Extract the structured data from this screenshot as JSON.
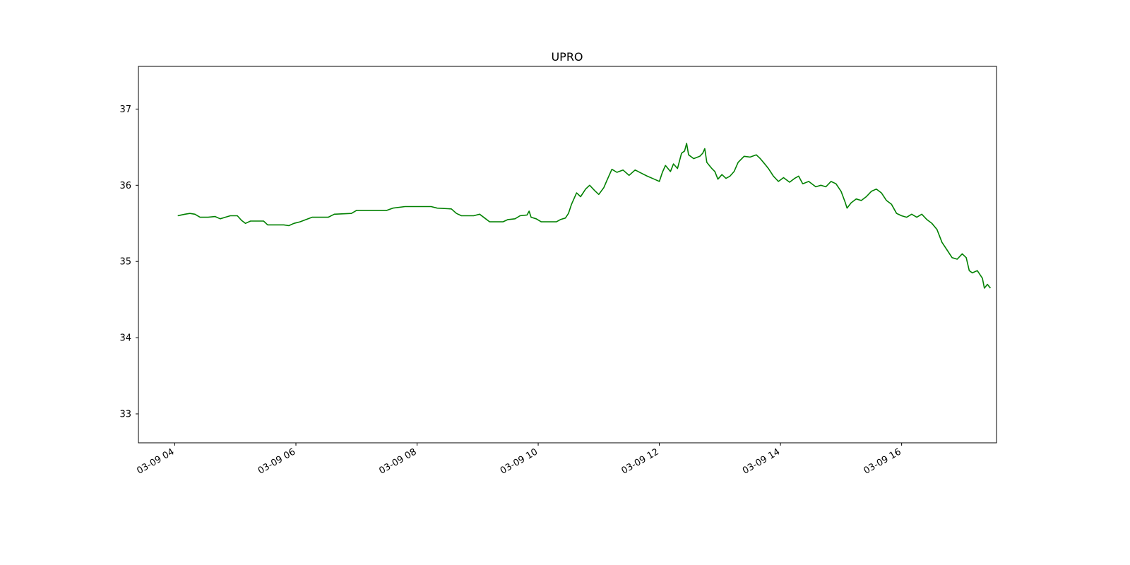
{
  "chart_data": {
    "type": "line",
    "title": "UPRO",
    "xlabel": "",
    "ylabel": "",
    "x_ticks": [
      "03-09 04",
      "03-09 06",
      "03-09 08",
      "03-09 10",
      "03-09 12",
      "03-09 14",
      "03-09 16"
    ],
    "y_ticks": [
      "33",
      "34",
      "35",
      "36",
      "37"
    ],
    "xlim": [
      "03-09 03:24",
      "03-09 17:34"
    ],
    "ylim": [
      32.62,
      37.56
    ],
    "grid": false,
    "line_color": "#008000",
    "series": [
      {
        "points": [
          [
            "03-09 04:03",
            35.6
          ],
          [
            "03-09 04:10",
            35.62
          ],
          [
            "03-09 04:15",
            35.63
          ],
          [
            "03-09 04:20",
            35.62
          ],
          [
            "03-09 04:25",
            35.58
          ],
          [
            "03-09 04:33",
            35.58
          ],
          [
            "03-09 04:40",
            35.59
          ],
          [
            "03-09 04:45",
            35.56
          ],
          [
            "03-09 04:50",
            35.58
          ],
          [
            "03-09 04:55",
            35.6
          ],
          [
            "03-09 05:02",
            35.6
          ],
          [
            "03-09 05:06",
            35.54
          ],
          [
            "03-09 05:10",
            35.5
          ],
          [
            "03-09 05:15",
            35.53
          ],
          [
            "03-09 05:28",
            35.53
          ],
          [
            "03-09 05:32",
            35.48
          ],
          [
            "03-09 05:48",
            35.48
          ],
          [
            "03-09 05:53",
            35.47
          ],
          [
            "03-09 05:58",
            35.5
          ],
          [
            "03-09 06:04",
            35.52
          ],
          [
            "03-09 06:10",
            35.55
          ],
          [
            "03-09 06:16",
            35.58
          ],
          [
            "03-09 06:32",
            35.58
          ],
          [
            "03-09 06:38",
            35.62
          ],
          [
            "03-09 06:55",
            35.63
          ],
          [
            "03-09 07:00",
            35.67
          ],
          [
            "03-09 07:30",
            35.67
          ],
          [
            "03-09 07:36",
            35.7
          ],
          [
            "03-09 07:48",
            35.72
          ],
          [
            "03-09 08:14",
            35.72
          ],
          [
            "03-09 08:20",
            35.7
          ],
          [
            "03-09 08:34",
            35.69
          ],
          [
            "03-09 08:39",
            35.63
          ],
          [
            "03-09 08:44",
            35.6
          ],
          [
            "03-09 08:56",
            35.6
          ],
          [
            "03-09 09:02",
            35.62
          ],
          [
            "03-09 09:08",
            35.56
          ],
          [
            "03-09 09:12",
            35.52
          ],
          [
            "03-09 09:25",
            35.52
          ],
          [
            "03-09 09:30",
            35.55
          ],
          [
            "03-09 09:37",
            35.56
          ],
          [
            "03-09 09:42",
            35.6
          ],
          [
            "03-09 09:49",
            35.61
          ],
          [
            "03-09 09:51",
            35.66
          ],
          [
            "03-09 09:53",
            35.58
          ],
          [
            "03-09 09:58",
            35.56
          ],
          [
            "03-09 10:03",
            35.52
          ],
          [
            "03-09 10:18",
            35.52
          ],
          [
            "03-09 10:22",
            35.55
          ],
          [
            "03-09 10:27",
            35.57
          ],
          [
            "03-09 10:30",
            35.63
          ],
          [
            "03-09 10:33",
            35.75
          ],
          [
            "03-09 10:38",
            35.9
          ],
          [
            "03-09 10:42",
            35.85
          ],
          [
            "03-09 10:47",
            35.95
          ],
          [
            "03-09 10:51",
            36.0
          ],
          [
            "03-09 10:56",
            35.93
          ],
          [
            "03-09 11:00",
            35.88
          ],
          [
            "03-09 11:05",
            35.97
          ],
          [
            "03-09 11:08",
            36.06
          ],
          [
            "03-09 11:13",
            36.21
          ],
          [
            "03-09 11:18",
            36.17
          ],
          [
            "03-09 11:24",
            36.2
          ],
          [
            "03-09 11:30",
            36.13
          ],
          [
            "03-09 11:36",
            36.2
          ],
          [
            "03-09 11:42",
            36.16
          ],
          [
            "03-09 11:48",
            36.12
          ],
          [
            "03-09 11:55",
            36.08
          ],
          [
            "03-09 12:00",
            36.05
          ],
          [
            "03-09 12:03",
            36.17
          ],
          [
            "03-09 12:06",
            36.26
          ],
          [
            "03-09 12:11",
            36.18
          ],
          [
            "03-09 12:14",
            36.28
          ],
          [
            "03-09 12:18",
            36.22
          ],
          [
            "03-09 12:22",
            36.42
          ],
          [
            "03-09 12:25",
            36.45
          ],
          [
            "03-09 12:27",
            36.55
          ],
          [
            "03-09 12:29",
            36.4
          ],
          [
            "03-09 12:34",
            36.35
          ],
          [
            "03-09 12:40",
            36.38
          ],
          [
            "03-09 12:43",
            36.42
          ],
          [
            "03-09 12:45",
            36.48
          ],
          [
            "03-09 12:47",
            36.3
          ],
          [
            "03-09 12:52",
            36.22
          ],
          [
            "03-09 12:55",
            36.18
          ],
          [
            "03-09 12:58",
            36.08
          ],
          [
            "03-09 13:02",
            36.14
          ],
          [
            "03-09 13:06",
            36.09
          ],
          [
            "03-09 13:10",
            36.12
          ],
          [
            "03-09 13:14",
            36.18
          ],
          [
            "03-09 13:18",
            36.3
          ],
          [
            "03-09 13:24",
            36.38
          ],
          [
            "03-09 13:30",
            36.37
          ],
          [
            "03-09 13:36",
            36.4
          ],
          [
            "03-09 13:40",
            36.35
          ],
          [
            "03-09 13:45",
            36.27
          ],
          [
            "03-09 13:48",
            36.22
          ],
          [
            "03-09 13:53",
            36.12
          ],
          [
            "03-09 13:58",
            36.05
          ],
          [
            "03-09 14:03",
            36.1
          ],
          [
            "03-09 14:09",
            36.04
          ],
          [
            "03-09 14:14",
            36.09
          ],
          [
            "03-09 14:18",
            36.12
          ],
          [
            "03-09 14:22",
            36.02
          ],
          [
            "03-09 14:28",
            36.05
          ],
          [
            "03-09 14:35",
            35.98
          ],
          [
            "03-09 14:40",
            36.0
          ],
          [
            "03-09 14:45",
            35.98
          ],
          [
            "03-09 14:50",
            36.05
          ],
          [
            "03-09 14:55",
            36.02
          ],
          [
            "03-09 15:00",
            35.92
          ],
          [
            "03-09 15:04",
            35.78
          ],
          [
            "03-09 15:06",
            35.7
          ],
          [
            "03-09 15:10",
            35.77
          ],
          [
            "03-09 15:15",
            35.82
          ],
          [
            "03-09 15:20",
            35.8
          ],
          [
            "03-09 15:25",
            35.85
          ],
          [
            "03-09 15:30",
            35.92
          ],
          [
            "03-09 15:35",
            35.95
          ],
          [
            "03-09 15:40",
            35.9
          ],
          [
            "03-09 15:45",
            35.8
          ],
          [
            "03-09 15:50",
            35.75
          ],
          [
            "03-09 15:55",
            35.63
          ],
          [
            "03-09 16:00",
            35.6
          ],
          [
            "03-09 16:05",
            35.58
          ],
          [
            "03-09 16:10",
            35.62
          ],
          [
            "03-09 16:15",
            35.58
          ],
          [
            "03-09 16:20",
            35.62
          ],
          [
            "03-09 16:25",
            35.55
          ],
          [
            "03-09 16:30",
            35.5
          ],
          [
            "03-09 16:35",
            35.42
          ],
          [
            "03-09 16:40",
            35.25
          ],
          [
            "03-09 16:45",
            35.15
          ],
          [
            "03-09 16:50",
            35.05
          ],
          [
            "03-09 16:55",
            35.03
          ],
          [
            "03-09 17:00",
            35.1
          ],
          [
            "03-09 17:04",
            35.05
          ],
          [
            "03-09 17:07",
            34.88
          ],
          [
            "03-09 17:10",
            34.85
          ],
          [
            "03-09 17:15",
            34.88
          ],
          [
            "03-09 17:20",
            34.78
          ],
          [
            "03-09 17:22",
            34.65
          ],
          [
            "03-09 17:25",
            34.7
          ],
          [
            "03-09 17:28",
            34.65
          ]
        ]
      }
    ]
  }
}
